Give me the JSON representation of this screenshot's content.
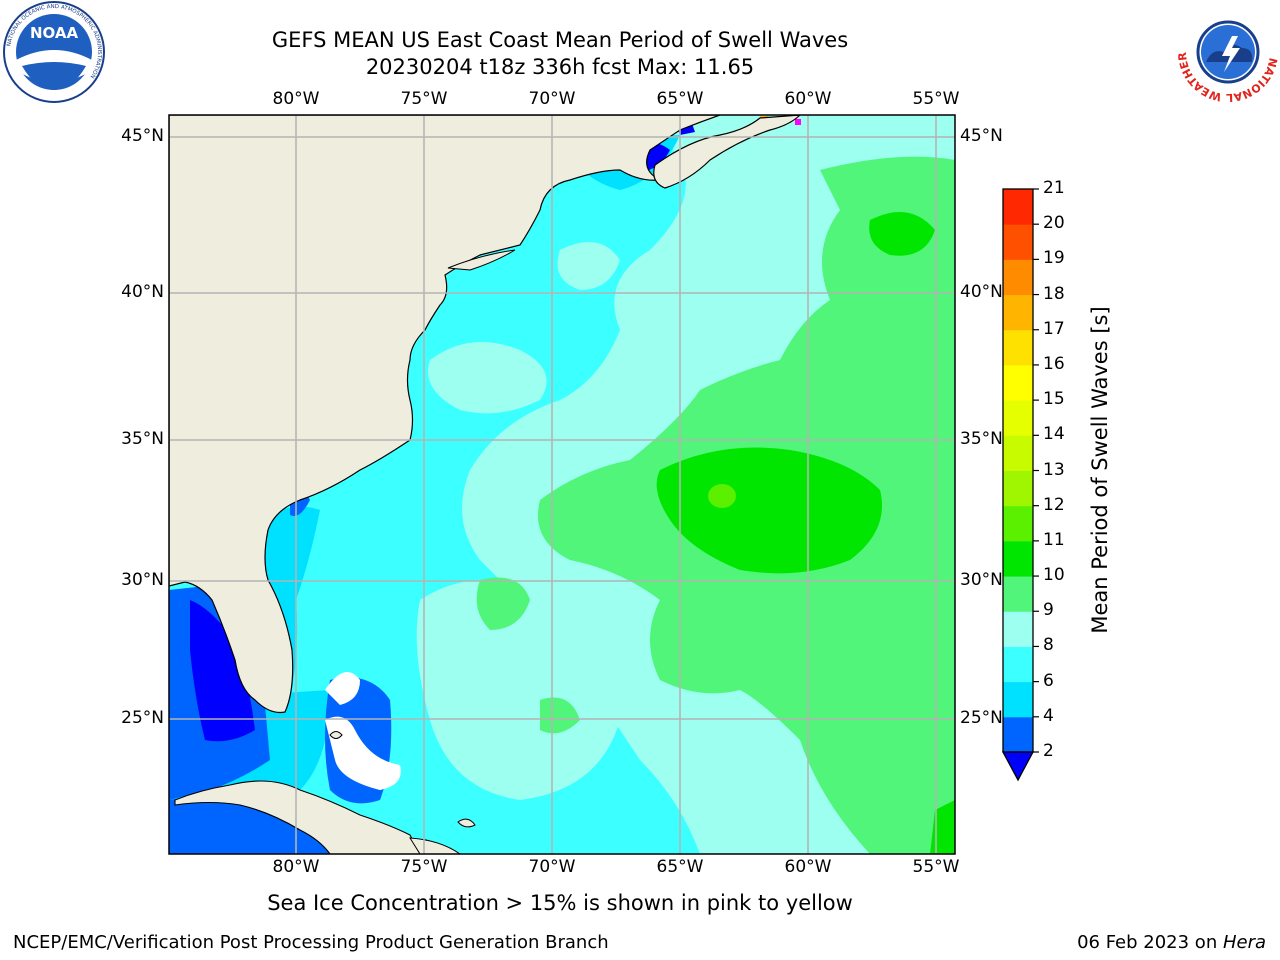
{
  "title": {
    "line1": "GEFS MEAN US East Coast Mean Period of Swell Waves",
    "line2": "20230204 t18z 336h fcst   Max: 11.65"
  },
  "map": {
    "lon_labels": [
      "80°W",
      "75°W",
      "70°W",
      "65°W",
      "60°W",
      "55°W"
    ],
    "lat_labels": [
      "45°N",
      "40°N",
      "35°N",
      "30°N",
      "25°N"
    ],
    "land_color": "#efedde",
    "grid_color": "#b4b4b4"
  },
  "colorbar": {
    "title": "Mean Period of Swell Waves [s]",
    "levels": [
      "2",
      "4",
      "6",
      "8",
      "9",
      "10",
      "11",
      "12",
      "13",
      "14",
      "15",
      "16",
      "17",
      "18",
      "19",
      "20",
      "21"
    ],
    "colors": [
      "#0064ff",
      "#00e1ff",
      "#3cffff",
      "#9cfff0",
      "#50f57a",
      "#00e600",
      "#5af000",
      "#a0f500",
      "#c8fa00",
      "#e6ff00",
      "#ffff00",
      "#ffe100",
      "#ffb400",
      "#ff8c00",
      "#ff5000",
      "#ff2800",
      "#ff0000"
    ],
    "under_color": "#0000ff"
  },
  "note": "Sea Ice Concentration > 15% is shown in pink to yellow",
  "footer": {
    "left": "NCEP/EMC/Verification Post Processing Product Generation Branch",
    "date": "06 Feb 2023 on ",
    "machine": "Hera"
  },
  "logos": {
    "left": {
      "name": "NOAA",
      "ring_text": "NATIONAL OCEANIC AND ATMOSPHERIC ADMINISTRATION"
    },
    "right": {
      "ring_text": "NATIONAL WEATHER SERVICE"
    }
  }
}
